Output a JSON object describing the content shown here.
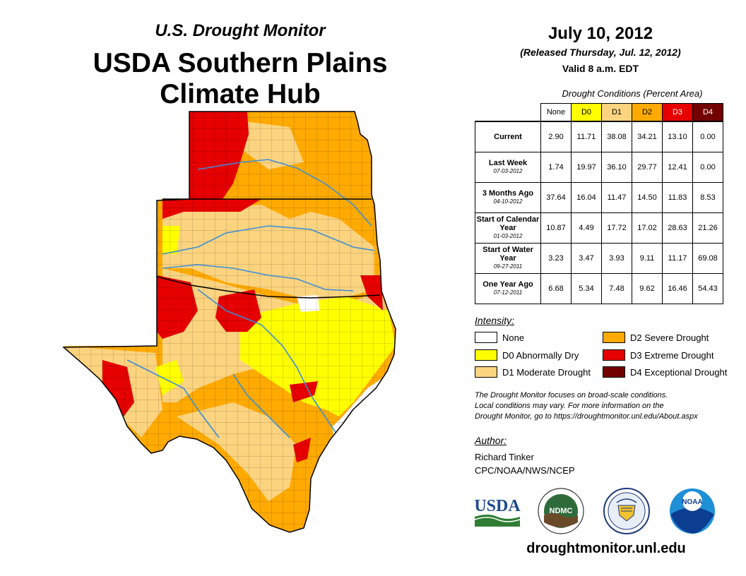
{
  "header": {
    "subtitle": "U.S. Drought Monitor",
    "title_line1": "USDA Southern Plains",
    "title_line2": "Climate Hub"
  },
  "release": {
    "date": "July 10, 2012",
    "released": "(Released Thursday, Jul. 12, 2012)",
    "valid": "Valid 8 a.m. EDT"
  },
  "table": {
    "title": "Drought Conditions (Percent Area)",
    "columns": [
      "None",
      "D0",
      "D1",
      "D2",
      "D3",
      "D4"
    ],
    "column_colors": [
      "#ffffff",
      "#ffff00",
      "#fcd37f",
      "#ffaa00",
      "#e60000",
      "#730000"
    ],
    "rows": [
      {
        "label": "Current",
        "date": "",
        "values": [
          "2.90",
          "11.71",
          "38.08",
          "34.21",
          "13.10",
          "0.00"
        ]
      },
      {
        "label": "Last Week",
        "date": "07-03-2012",
        "values": [
          "1.74",
          "19.97",
          "36.10",
          "29.77",
          "12.41",
          "0.00"
        ]
      },
      {
        "label": "3 Months Ago",
        "date": "04-10-2012",
        "values": [
          "37.64",
          "16.04",
          "11.47",
          "14.50",
          "11.83",
          "8.53"
        ]
      },
      {
        "label": "Start of Calendar Year",
        "date": "01-03-2012",
        "values": [
          "10.87",
          "4.49",
          "17.72",
          "17.02",
          "28.63",
          "21.26"
        ]
      },
      {
        "label": "Start of Water Year",
        "date": "09-27-2011",
        "values": [
          "3.23",
          "3.47",
          "3.93",
          "9.11",
          "11.17",
          "69.08"
        ]
      },
      {
        "label": "One Year Ago",
        "date": "07-12-2011",
        "values": [
          "6.68",
          "5.34",
          "7.48",
          "9.62",
          "16.46",
          "54.43"
        ]
      }
    ]
  },
  "legend": {
    "title": "Intensity:",
    "items": [
      {
        "label": "None",
        "color": "#ffffff"
      },
      {
        "label": "D0 Abnormally Dry",
        "color": "#ffff00"
      },
      {
        "label": "D1 Moderate Drought",
        "color": "#fcd37f"
      },
      {
        "label": "D2 Severe Drought",
        "color": "#ffaa00"
      },
      {
        "label": "D3 Extreme Drought",
        "color": "#e60000"
      },
      {
        "label": "D4 Exceptional Drought",
        "color": "#730000"
      }
    ]
  },
  "note": {
    "line1": "The Drought Monitor focuses on broad-scale conditions.",
    "line2": "Local conditions may vary. For more information on the",
    "line3": "Drought Monitor, go to https://droughtmonitor.unl.edu/About.aspx"
  },
  "author": {
    "label": "Author:",
    "name": "Richard Tinker",
    "org": "CPC/NOAA/NWS/NCEP"
  },
  "logos": {
    "usda": "USDA",
    "ndmc": "NDMC",
    "noaa": "NOAA"
  },
  "footer": {
    "site": "droughtmonitor.unl.edu"
  }
}
